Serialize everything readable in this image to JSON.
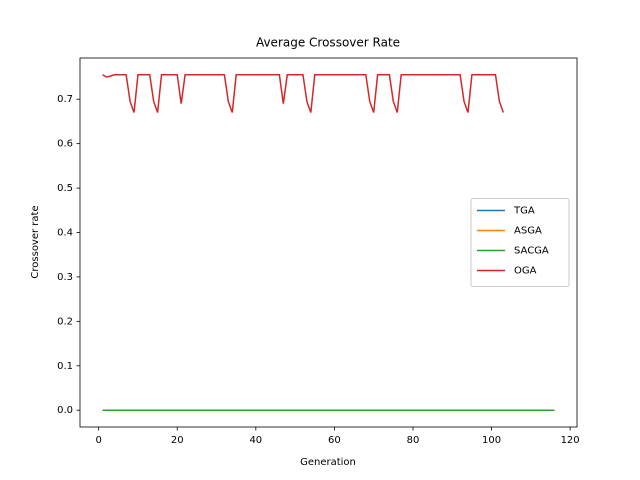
{
  "chart_data": {
    "type": "line",
    "title": "Average Crossover Rate",
    "x_label": "Generation",
    "y_label": "Crossover rate",
    "x": [
      1,
      2,
      3,
      4,
      5,
      6,
      7,
      8,
      9,
      10,
      11,
      12,
      13,
      14,
      15,
      16,
      17,
      18,
      19,
      20,
      21,
      22,
      23,
      24,
      25,
      26,
      27,
      28,
      29,
      30,
      31,
      32,
      33,
      34,
      35,
      36,
      37,
      38,
      39,
      40,
      41,
      42,
      43,
      44,
      45,
      46,
      47,
      48,
      49,
      50,
      51,
      52,
      53,
      54,
      55,
      56,
      57,
      58,
      59,
      60,
      61,
      62,
      63,
      64,
      65,
      66,
      67,
      68,
      69,
      70,
      71,
      72,
      73,
      74,
      75,
      76,
      77,
      78,
      79,
      80,
      81,
      82,
      83,
      84,
      85,
      86,
      87,
      88,
      89,
      90,
      91,
      92,
      93,
      94,
      95,
      96,
      97,
      98,
      99,
      100,
      101,
      102,
      103,
      104,
      105,
      106,
      107,
      108,
      109,
      110,
      111,
      112,
      113,
      114,
      115,
      116
    ],
    "series": [
      {
        "name": "TGA",
        "color": "#1f77b4",
        "values": [
          0,
          0,
          0,
          0,
          0,
          0,
          0,
          0,
          0,
          0,
          0,
          0,
          0,
          0,
          0,
          0,
          0,
          0,
          0,
          0,
          0,
          0,
          0,
          0,
          0,
          0,
          0,
          0,
          0,
          0,
          0,
          0,
          0,
          0,
          0,
          0,
          0,
          0,
          0,
          0,
          0,
          0,
          0,
          0,
          0,
          0,
          0,
          0,
          0,
          0,
          0,
          0,
          0,
          0,
          0,
          0,
          0,
          0,
          0,
          0,
          0,
          0,
          0,
          0,
          0,
          0,
          0,
          0,
          0,
          0,
          0,
          0,
          0,
          0,
          0,
          0,
          0,
          0,
          0,
          0,
          0,
          0,
          0,
          0,
          0,
          0,
          0,
          0,
          0,
          0,
          0,
          0,
          0,
          0,
          0,
          0,
          0,
          0,
          0,
          0,
          0,
          0,
          0,
          0,
          0,
          0,
          0,
          0,
          0,
          0,
          0,
          0,
          0,
          0,
          0,
          0
        ]
      },
      {
        "name": "ASGA",
        "color": "#ff7f0e",
        "values": [
          0,
          0,
          0,
          0,
          0,
          0,
          0,
          0,
          0,
          0,
          0,
          0,
          0,
          0,
          0,
          0,
          0,
          0,
          0,
          0,
          0,
          0,
          0,
          0,
          0,
          0,
          0,
          0,
          0,
          0,
          0,
          0,
          0,
          0,
          0,
          0,
          0,
          0,
          0,
          0,
          0,
          0,
          0,
          0,
          0,
          0,
          0,
          0,
          0,
          0,
          0,
          0,
          0,
          0,
          0,
          0,
          0,
          0,
          0,
          0,
          0,
          0,
          0,
          0,
          0,
          0,
          0,
          0,
          0,
          0,
          0,
          0,
          0,
          0,
          0,
          0,
          0,
          0,
          0,
          0,
          0,
          0,
          0,
          0,
          0,
          0,
          0,
          0,
          0,
          0,
          0,
          0,
          0,
          0,
          0,
          0,
          0,
          0,
          0,
          0,
          0,
          0,
          0,
          0,
          0,
          0,
          0,
          0,
          0,
          0,
          0,
          0,
          0,
          0,
          0,
          0
        ]
      },
      {
        "name": "SACGA",
        "color": "#2ca02c",
        "values": [
          0,
          0,
          0,
          0,
          0,
          0,
          0,
          0,
          0,
          0,
          0,
          0,
          0,
          0,
          0,
          0,
          0,
          0,
          0,
          0,
          0,
          0,
          0,
          0,
          0,
          0,
          0,
          0,
          0,
          0,
          0,
          0,
          0,
          0,
          0,
          0,
          0,
          0,
          0,
          0,
          0,
          0,
          0,
          0,
          0,
          0,
          0,
          0,
          0,
          0,
          0,
          0,
          0,
          0,
          0,
          0,
          0,
          0,
          0,
          0,
          0,
          0,
          0,
          0,
          0,
          0,
          0,
          0,
          0,
          0,
          0,
          0,
          0,
          0,
          0,
          0,
          0,
          0,
          0,
          0,
          0,
          0,
          0,
          0,
          0,
          0,
          0,
          0,
          0,
          0,
          0,
          0,
          0,
          0,
          0,
          0,
          0,
          0,
          0,
          0,
          0,
          0,
          0,
          0,
          0,
          0,
          0,
          0,
          0,
          0,
          0,
          0,
          0,
          0,
          0,
          0
        ]
      },
      {
        "name": "OGA",
        "color": "#d62728",
        "values": [
          0.755,
          0.75,
          0.752,
          0.755,
          0.755,
          0.755,
          0.755,
          0.695,
          0.67,
          0.755,
          0.755,
          0.755,
          0.755,
          0.695,
          0.67,
          0.755,
          0.755,
          0.755,
          0.755,
          0.755,
          0.69,
          0.755,
          0.755,
          0.755,
          0.755,
          0.755,
          0.755,
          0.755,
          0.755,
          0.755,
          0.755,
          0.755,
          0.695,
          0.67,
          0.755,
          0.755,
          0.755,
          0.755,
          0.755,
          0.755,
          0.755,
          0.755,
          0.755,
          0.755,
          0.755,
          0.755,
          0.69,
          0.755,
          0.755,
          0.755,
          0.755,
          0.755,
          0.695,
          0.67,
          0.755,
          0.755,
          0.755,
          0.755,
          0.755,
          0.755,
          0.755,
          0.755,
          0.755,
          0.755,
          0.755,
          0.755,
          0.755,
          0.755,
          0.695,
          0.67,
          0.755,
          0.755,
          0.755,
          0.755,
          0.695,
          0.67,
          0.755,
          0.755,
          0.755,
          0.755,
          0.755,
          0.755,
          0.755,
          0.755,
          0.755,
          0.755,
          0.755,
          0.755,
          0.755,
          0.755,
          0.755,
          0.755,
          0.695,
          0.67,
          0.755,
          0.755,
          0.755,
          0.755,
          0.755,
          0.755,
          0.755,
          0.695,
          0.67,
          null,
          null,
          null,
          null,
          null,
          null,
          null,
          null,
          null,
          null,
          null,
          null,
          null
        ]
      }
    ],
    "xlim": [
      -4.75,
      121.75
    ],
    "xticks": [
      0,
      20,
      40,
      60,
      80,
      100,
      120
    ],
    "ylim": [
      -0.0378,
      0.7928
    ],
    "yticks": [
      {
        "value": 0,
        "label": "0.0"
      },
      0.1,
      0.2,
      0.3,
      0.4,
      0.5,
      0.6,
      0.7
    ],
    "grid": false,
    "legend": "center right"
  }
}
